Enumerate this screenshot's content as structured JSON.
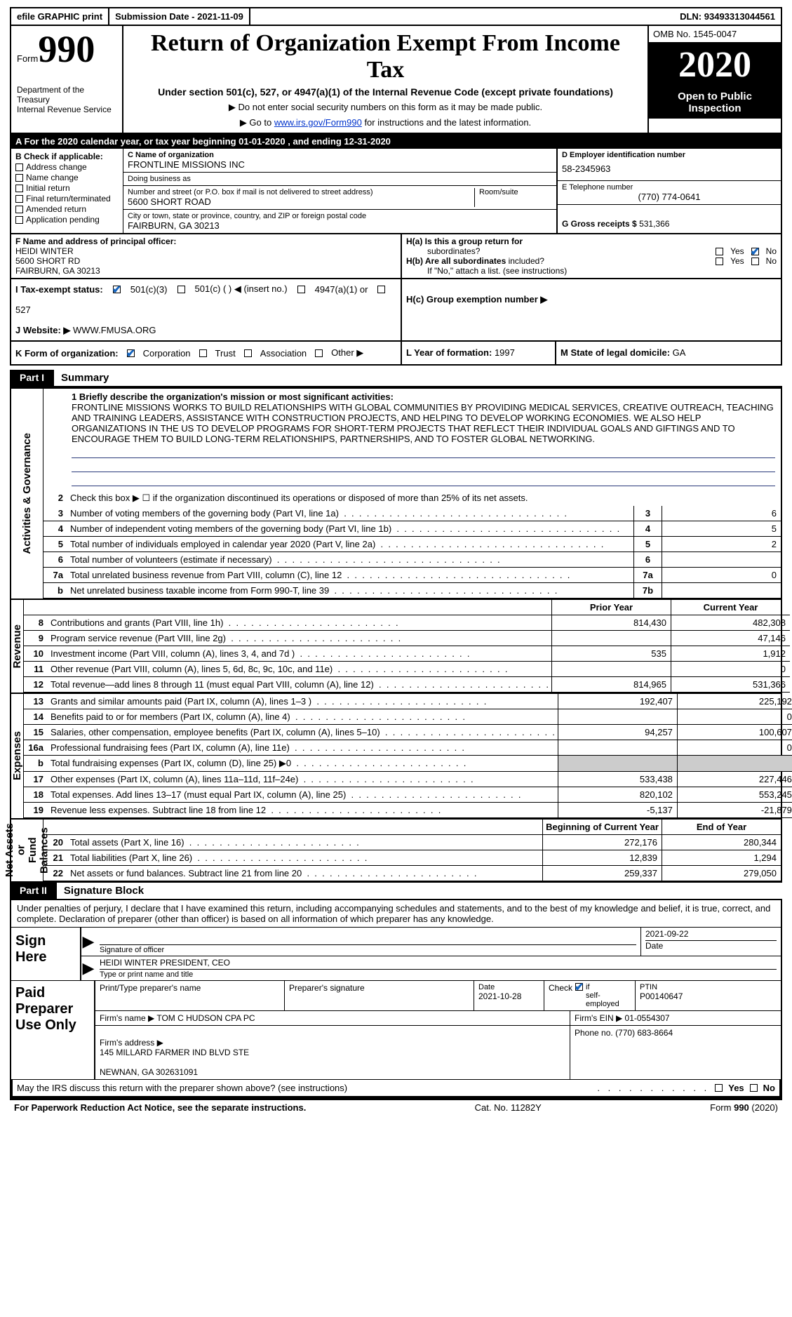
{
  "topbar": {
    "efile": "efile GRAPHIC print",
    "submission": "Submission Date - 2021-11-09",
    "dln_label": "DLN:",
    "dln": "93493313044561"
  },
  "header": {
    "form_label": "Form",
    "form_number": "990",
    "dept": "Department of the Treasury\nInternal Revenue Service",
    "title": "Return of Organization Exempt From Income Tax",
    "subtitle": "Under section 501(c), 527, or 4947(a)(1) of the Internal Revenue Code (except private foundations)",
    "note1": "▶ Do not enter social security numbers on this form as it may be made public.",
    "note2_pre": "▶ Go to ",
    "note2_link": "www.irs.gov/Form990",
    "note2_post": " for instructions and the latest information.",
    "omb": "OMB No. 1545-0047",
    "year": "2020",
    "inspection": "Open to Public\nInspection"
  },
  "barA": "A For the 2020 calendar year, or tax year beginning 01-01-2020   , and ending 12-31-2020",
  "boxB": {
    "label": "B Check if applicable:",
    "items": [
      "Address change",
      "Name change",
      "Initial return",
      "Final return/terminated",
      "Amended return",
      "Application pending"
    ]
  },
  "boxC": {
    "name_lbl": "C Name of organization",
    "name": "FRONTLINE MISSIONS INC",
    "dba_lbl": "Doing business as",
    "dba": "",
    "street_lbl": "Number and street (or P.O. box if mail is not delivered to street address)",
    "street": "5600 SHORT ROAD",
    "room_lbl": "Room/suite",
    "room": "",
    "city_lbl": "City or town, state or province, country, and ZIP or foreign postal code",
    "city": "FAIRBURN, GA  30213"
  },
  "boxD": {
    "lbl": "D Employer identification number",
    "val": "58-2345963"
  },
  "boxE": {
    "lbl": "E Telephone number",
    "val": "(770) 774-0641"
  },
  "boxG": {
    "lbl": "G Gross receipts $",
    "val": "531,366"
  },
  "boxF": {
    "lbl": "F  Name and address of principal officer:",
    "name": "HEIDI WINTER",
    "addr1": "5600 SHORT RD",
    "addr2": "FAIRBURN, GA  30213"
  },
  "boxH": {
    "a_lbl": "H(a)  Is this a group return for",
    "a_sub": "subordinates?",
    "yes": "Yes",
    "no": "No",
    "b_lbl": "H(b)  Are all subordinates",
    "b_sub": "included?",
    "b_note": "If \"No,\" attach a list. (see instructions)",
    "c_lbl": "H(c)  Group exemption number ▶"
  },
  "rowI": {
    "lbl": "I   Tax-exempt status:",
    "opt1": "501(c)(3)",
    "opt2": "501(c) (  ) ◀ (insert no.)",
    "opt3": "4947(a)(1) or",
    "opt4": "527"
  },
  "rowJ": {
    "lbl": "J   Website: ▶",
    "val": "WWW.FMUSA.ORG"
  },
  "rowK": {
    "lbl": "K Form of organization:",
    "opts": [
      "Corporation",
      "Trust",
      "Association",
      "Other ▶"
    ],
    "L_lbl": "L Year of formation:",
    "L_val": "1997",
    "M_lbl": "M State of legal domicile:",
    "M_val": "GA"
  },
  "partI": {
    "tag": "Part I",
    "title": "Summary"
  },
  "sectionA": {
    "tab": "Activities & Governance",
    "line1_lbl": "1   Briefly describe the organization's mission or most significant activities:",
    "line1_txt": "FRONTLINE MISSIONS WORKS TO BUILD RELATIONSHIPS WITH GLOBAL COMMUNITIES BY PROVIDING MEDICAL SERVICES, CREATIVE OUTREACH, TEACHING AND TRAINING LEADERS, ASSISTANCE WITH CONSTRUCTION PROJECTS, AND HELPING TO DEVELOP WORKING ECONOMIES. WE ALSO HELP ORGANIZATIONS IN THE US TO DEVELOP PROGRAMS FOR SHORT-TERM PROJECTS THAT REFLECT THEIR INDIVIDUAL GOALS AND GIFTINGS AND TO ENCOURAGE THEM TO BUILD LONG-TERM RELATIONSHIPS, PARTNERSHIPS, AND TO FOSTER GLOBAL NETWORKING.",
    "line2": "Check this box ▶ ☐  if the organization discontinued its operations or disposed of more than 25% of its net assets.",
    "rows": [
      {
        "n": "3",
        "d": "Number of voting members of the governing body (Part VI, line 1a)",
        "box": "3",
        "v": "6"
      },
      {
        "n": "4",
        "d": "Number of independent voting members of the governing body (Part VI, line 1b)",
        "box": "4",
        "v": "5"
      },
      {
        "n": "5",
        "d": "Total number of individuals employed in calendar year 2020 (Part V, line 2a)",
        "box": "5",
        "v": "2"
      },
      {
        "n": "6",
        "d": "Total number of volunteers (estimate if necessary)",
        "box": "6",
        "v": ""
      },
      {
        "n": "7a",
        "d": "Total unrelated business revenue from Part VIII, column (C), line 12",
        "box": "7a",
        "v": "0"
      },
      {
        "n": "b",
        "d": "Net unrelated business taxable income from Form 990-T, line 39",
        "box": "7b",
        "v": ""
      }
    ]
  },
  "sectionRev": {
    "tab": "Revenue",
    "hdr_prior": "Prior Year",
    "hdr_curr": "Current Year",
    "rows": [
      {
        "n": "8",
        "d": "Contributions and grants (Part VIII, line 1h)",
        "p": "814,430",
        "c": "482,308"
      },
      {
        "n": "9",
        "d": "Program service revenue (Part VIII, line 2g)",
        "p": "",
        "c": "47,146"
      },
      {
        "n": "10",
        "d": "Investment income (Part VIII, column (A), lines 3, 4, and 7d )",
        "p": "535",
        "c": "1,912"
      },
      {
        "n": "11",
        "d": "Other revenue (Part VIII, column (A), lines 5, 6d, 8c, 9c, 10c, and 11e)",
        "p": "",
        "c": "0"
      },
      {
        "n": "12",
        "d": "Total revenue—add lines 8 through 11 (must equal Part VIII, column (A), line 12)",
        "p": "814,965",
        "c": "531,366"
      }
    ]
  },
  "sectionExp": {
    "tab": "Expenses",
    "rows": [
      {
        "n": "13",
        "d": "Grants and similar amounts paid (Part IX, column (A), lines 1–3 )",
        "p": "192,407",
        "c": "225,192"
      },
      {
        "n": "14",
        "d": "Benefits paid to or for members (Part IX, column (A), line 4)",
        "p": "",
        "c": "0"
      },
      {
        "n": "15",
        "d": "Salaries, other compensation, employee benefits (Part IX, column (A), lines 5–10)",
        "p": "94,257",
        "c": "100,607"
      },
      {
        "n": "16a",
        "d": "Professional fundraising fees (Part IX, column (A), line 11e)",
        "p": "",
        "c": "0"
      },
      {
        "n": "b",
        "d": "Total fundraising expenses (Part IX, column (D), line 25) ▶0",
        "p": "shade",
        "c": "shade"
      },
      {
        "n": "17",
        "d": "Other expenses (Part IX, column (A), lines 11a–11d, 11f–24e)",
        "p": "533,438",
        "c": "227,446"
      },
      {
        "n": "18",
        "d": "Total expenses. Add lines 13–17 (must equal Part IX, column (A), line 25)",
        "p": "820,102",
        "c": "553,245"
      },
      {
        "n": "19",
        "d": "Revenue less expenses. Subtract line 18 from line 12",
        "p": "-5,137",
        "c": "-21,879"
      }
    ]
  },
  "sectionNet": {
    "tab": "Net Assets or\nFund Balances",
    "hdr_beg": "Beginning of Current Year",
    "hdr_end": "End of Year",
    "rows": [
      {
        "n": "20",
        "d": "Total assets (Part X, line 16)",
        "p": "272,176",
        "c": "280,344"
      },
      {
        "n": "21",
        "d": "Total liabilities (Part X, line 26)",
        "p": "12,839",
        "c": "1,294"
      },
      {
        "n": "22",
        "d": "Net assets or fund balances. Subtract line 21 from line 20",
        "p": "259,337",
        "c": "279,050"
      }
    ]
  },
  "partII": {
    "tag": "Part II",
    "title": "Signature Block"
  },
  "sig": {
    "intro": "Under penalties of perjury, I declare that I have examined this return, including accompanying schedules and statements, and to the best of my knowledge and belief, it is true, correct, and complete. Declaration of preparer (other than officer) is based on all information of which preparer has any knowledge.",
    "sign_here": "Sign\nHere",
    "sig_officer_hint": "Signature of officer",
    "date_val": "2021-09-22",
    "date_hint": "Date",
    "name_val": "HEIDI WINTER  PRESIDENT, CEO",
    "name_hint": "Type or print name and title"
  },
  "prep": {
    "label": "Paid\nPreparer\nUse Only",
    "col1": "Print/Type preparer's name",
    "col2": "Preparer's signature",
    "col3_lbl": "Date",
    "col3_val": "2021-10-28",
    "col4_lbl": "Check",
    "col4_sub": "if\nself-employed",
    "col5_lbl": "PTIN",
    "col5_val": "P00140647",
    "firm_name_lbl": "Firm's name    ▶",
    "firm_name": "TOM C HUDSON CPA PC",
    "firm_ein_lbl": "Firm's EIN ▶",
    "firm_ein": "01-0554307",
    "firm_addr_lbl": "Firm's address ▶",
    "firm_addr": "145 MILLARD FARMER IND BLVD STE\n\nNEWNAN, GA  302631091",
    "phone_lbl": "Phone no.",
    "phone": "(770) 683-8664"
  },
  "discuss": {
    "q": "May the IRS discuss this return with the preparer shown above? (see instructions)",
    "yes": "Yes",
    "no": "No"
  },
  "footer": {
    "left": "For Paperwork Reduction Act Notice, see the separate instructions.",
    "mid": "Cat. No. 11282Y",
    "right": "Form 990 (2020)"
  }
}
